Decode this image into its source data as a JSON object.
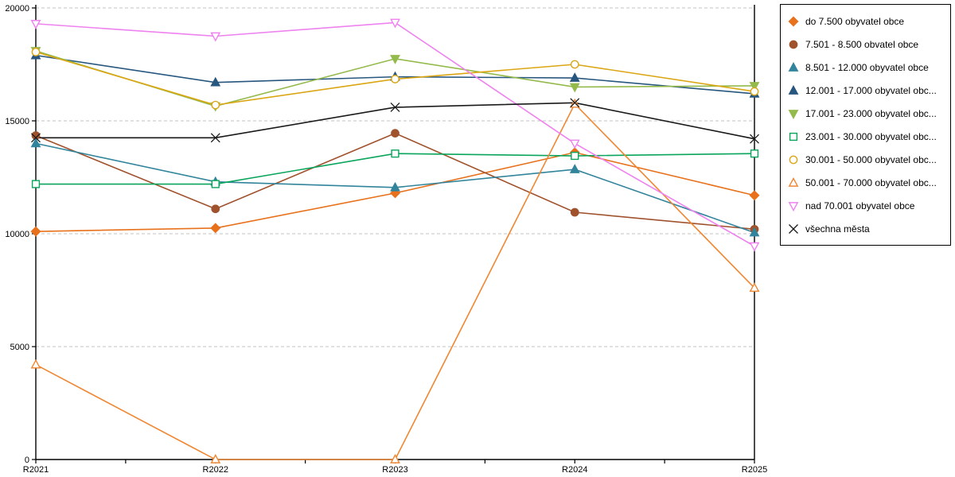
{
  "chart_data": {
    "type": "line",
    "title": "",
    "xlabel": "",
    "ylabel": "",
    "x_labels": [
      "R2021",
      "R2022",
      "R2023",
      "R2024",
      "R2025"
    ],
    "y_ticks": [
      0,
      5000,
      10000,
      15000,
      20000
    ],
    "y_range": [
      0,
      20000
    ],
    "grid": "horizontal-dashed",
    "legend_position": "outside-top-right",
    "series": [
      {
        "label": "do 7.500 obyvatel obce",
        "marker": "diamond",
        "marker_style": "filled",
        "color": "#e8711c",
        "values": [
          10100,
          10250,
          11800,
          13600,
          11700
        ]
      },
      {
        "label": "7.501 - 8.500 obvatel obce",
        "marker": "circle",
        "marker_style": "filled",
        "color": "#a0522d",
        "values": [
          14350,
          11100,
          14450,
          10950,
          10200
        ]
      },
      {
        "label": "8.501 - 12.000 obyvatel obce",
        "marker": "triangle-up",
        "marker_style": "filled",
        "color": "#31849b",
        "values": [
          14000,
          12300,
          12050,
          12850,
          10050
        ]
      },
      {
        "label": "12.001 - 17.000 obyvatel obc...",
        "marker": "triangle-up",
        "marker_style": "filled",
        "color": "#27567e",
        "values": [
          17900,
          16700,
          16950,
          16900,
          16200
        ]
      },
      {
        "label": "17.001 - 23.000 obyvatel obc...",
        "marker": "triangle-down",
        "marker_style": "filled",
        "color": "#94ba4b",
        "values": [
          18100,
          15650,
          17750,
          16500,
          16550
        ]
      },
      {
        "label": "23.001 - 30.000 obyvatel obc...",
        "marker": "square",
        "marker_style": "open",
        "color": "#0aa55c",
        "values": [
          12200,
          12200,
          13550,
          13450,
          13550
        ]
      },
      {
        "label": "30.001 - 50.000 obyvatel obc...",
        "marker": "circle",
        "marker_style": "open",
        "color": "#dba613",
        "values": [
          18050,
          15700,
          16850,
          17500,
          16300
        ]
      },
      {
        "label": "50.001 - 70.000 obyvatel obc...",
        "marker": "triangle-up",
        "marker_style": "open",
        "color": "#ef8733",
        "values": [
          4200,
          0,
          0,
          15750,
          7600
        ]
      },
      {
        "label": "nad 70.001 obyvatel obce",
        "marker": "triangle-down",
        "marker_style": "open",
        "color": "#ee82ee",
        "values": [
          19300,
          18750,
          19350,
          14000,
          9450
        ]
      },
      {
        "label": "všechna města",
        "marker": "x",
        "marker_style": "line",
        "color": "#1a1a1a",
        "values": [
          14250,
          14250,
          15600,
          15800,
          14200
        ]
      }
    ],
    "axis_color": "#000000",
    "gridline_color": "#c3c3c3"
  }
}
